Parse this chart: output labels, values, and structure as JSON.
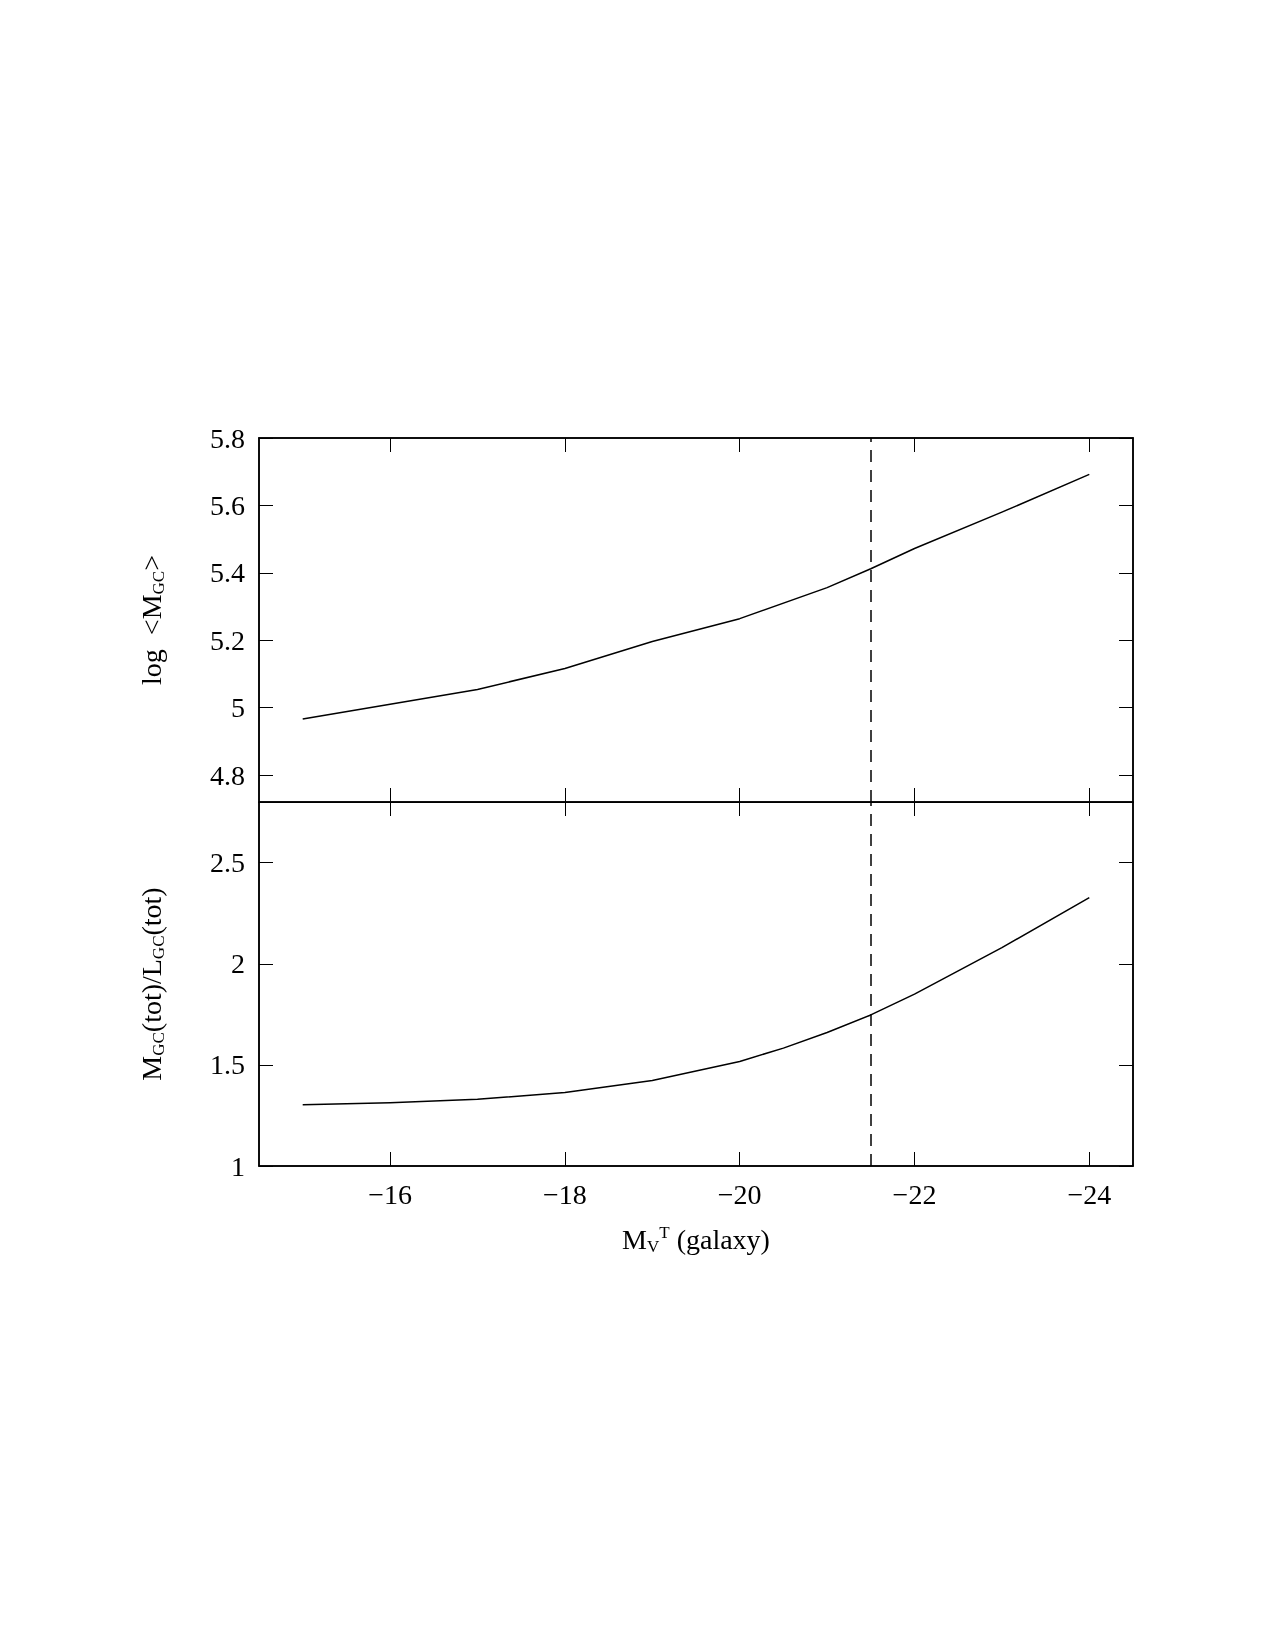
{
  "chart_data": [
    {
      "type": "line",
      "ylabel": "log  <M$_{GC}$>",
      "x": [
        -15,
        -16,
        -17,
        -18,
        -19,
        -20,
        -21,
        -21.5,
        -22,
        -23,
        -24
      ],
      "series": [
        {
          "color": "#000000",
          "values": [
            4.966,
            5.01,
            5.054,
            5.116,
            5.196,
            5.264,
            5.356,
            5.412,
            5.472,
            5.58,
            5.692
          ]
        }
      ],
      "xlim": [
        -14.5,
        -24.5
      ],
      "xticks": [
        -16,
        -18,
        -20,
        -22,
        -24
      ],
      "ylim": [
        4.72,
        5.8
      ],
      "yticks": [
        4.8,
        5,
        5.2,
        5.4,
        5.6,
        5.8
      ],
      "ref_lines": [
        {
          "axis": "x",
          "value": -21.5,
          "line_style": "dashed",
          "color": "#000000"
        }
      ],
      "tick_labels": "y",
      "grid": false,
      "marker": "none",
      "line_style": "solid"
    },
    {
      "type": "line",
      "xlabel": "M$_{V}$$^{T}$ (galaxy)",
      "ylabel": "M$_{GC}$(tot)/L$_{GC}$(tot)",
      "x": [
        -15,
        -16,
        -17,
        -18,
        -19,
        -20,
        -20.5,
        -21,
        -21.5,
        -22,
        -23,
        -24
      ],
      "series": [
        {
          "color": "#000000",
          "values": [
            1.303,
            1.313,
            1.33,
            1.363,
            1.423,
            1.517,
            1.583,
            1.66,
            1.747,
            1.85,
            2.08,
            2.327
          ]
        }
      ],
      "xlim": [
        -14.5,
        -24.5
      ],
      "xticks": [
        -16,
        -18,
        -20,
        -22,
        -24
      ],
      "ylim": [
        1,
        2.8
      ],
      "yticks": [
        1,
        1.5,
        2,
        2.5
      ],
      "ref_lines": [
        {
          "axis": "x",
          "value": -21.5,
          "line_style": "dashed",
          "color": "#000000"
        }
      ],
      "grid": false,
      "marker": "none",
      "line_style": "solid"
    }
  ]
}
